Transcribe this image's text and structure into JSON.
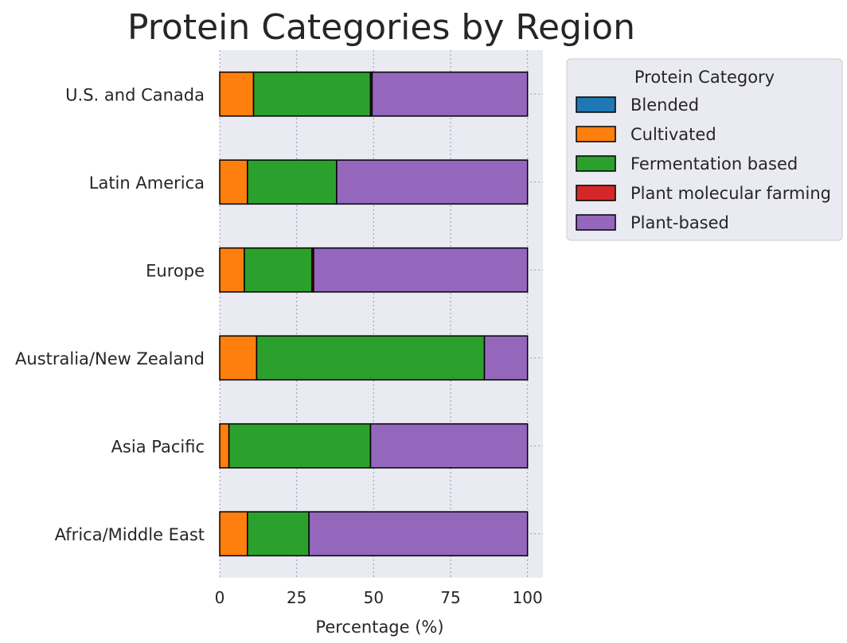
{
  "chart_data": {
    "type": "bar",
    "orientation": "horizontal",
    "stacked": true,
    "title": "Protein Categories by Region",
    "xlabel": "Percentage (%)",
    "ylabel": "",
    "xlim": [
      0,
      105
    ],
    "xticks": [
      0,
      25,
      50,
      75,
      100
    ],
    "grid": true,
    "legend": {
      "title": "Protein Category",
      "position": "upper-right-outside"
    },
    "categories": [
      "U.S. and Canada",
      "Latin America",
      "Europe",
      "Australia/New Zealand",
      "Asia Pacific",
      "Africa/Middle East"
    ],
    "series": [
      {
        "name": "Blended",
        "color": "#1f77b4",
        "values": [
          0,
          0,
          0,
          0,
          0,
          0
        ]
      },
      {
        "name": "Cultivated",
        "color": "#ff7f0e",
        "values": [
          11,
          9,
          8,
          12,
          3,
          9
        ]
      },
      {
        "name": "Fermentation based",
        "color": "#2ca02c",
        "values": [
          38,
          29,
          22,
          74,
          46,
          20
        ]
      },
      {
        "name": "Plant molecular farming",
        "color": "#d62728",
        "values": [
          0.5,
          0,
          0.5,
          0,
          0,
          0
        ]
      },
      {
        "name": "Plant-based",
        "color": "#9467bd",
        "values": [
          50.5,
          62,
          69.5,
          14,
          51,
          71
        ]
      }
    ]
  }
}
